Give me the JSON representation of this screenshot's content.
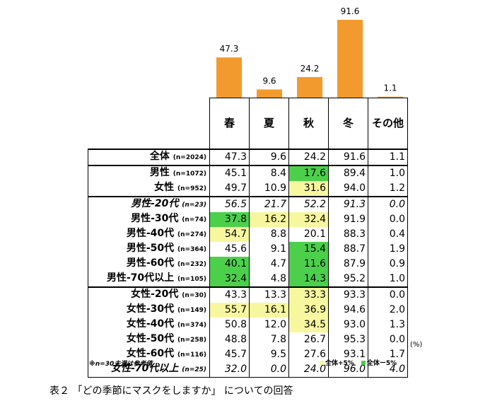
{
  "chart_data": {
    "type": "bar",
    "categories": [
      "春",
      "夏",
      "秋",
      "冬",
      "その他"
    ],
    "values": [
      47.3,
      9.6,
      24.2,
      91.6,
      1.1
    ],
    "ylim": [
      0,
      100
    ],
    "bar_color": "#f39a2e",
    "table": {
      "rows": [
        {
          "label": "全体",
          "n": "(n=2024)",
          "values": [
            "47.3",
            "9.6",
            "24.2",
            "91.6",
            "1.1"
          ],
          "hl": [
            "",
            "",
            "",
            "",
            ""
          ],
          "ref": false,
          "group_start": true
        },
        {
          "label": "男性",
          "n": "(n=1072)",
          "values": [
            "45.1",
            "8.4",
            "17.6",
            "89.4",
            "1.0"
          ],
          "hl": [
            "",
            "",
            "lo",
            "",
            ""
          ],
          "ref": false,
          "group_start": true
        },
        {
          "label": "女性",
          "n": "(n=952)",
          "values": [
            "49.7",
            "10.9",
            "31.6",
            "94.0",
            "1.2"
          ],
          "hl": [
            "",
            "",
            "hi",
            "",
            ""
          ],
          "ref": false,
          "group_start": false
        },
        {
          "label": "男性-20代",
          "n": "(n=23)",
          "values": [
            "56.5",
            "21.7",
            "52.2",
            "91.3",
            "0.0"
          ],
          "hl": [
            "",
            "",
            "",
            "",
            ""
          ],
          "ref": true,
          "group_start": true
        },
        {
          "label": "男性-30代",
          "n": "(n=74)",
          "values": [
            "37.8",
            "16.2",
            "32.4",
            "91.9",
            "0.0"
          ],
          "hl": [
            "lo",
            "hi",
            "hi",
            "",
            ""
          ],
          "ref": false,
          "group_start": false
        },
        {
          "label": "男性-40代",
          "n": "(n=274)",
          "values": [
            "54.7",
            "8.8",
            "20.1",
            "88.3",
            "0.4"
          ],
          "hl": [
            "hi",
            "",
            "",
            "",
            ""
          ],
          "ref": false,
          "group_start": false
        },
        {
          "label": "男性-50代",
          "n": "(n=364)",
          "values": [
            "45.6",
            "9.1",
            "15.4",
            "88.7",
            "1.9"
          ],
          "hl": [
            "",
            "",
            "lo",
            "",
            ""
          ],
          "ref": false,
          "group_start": false
        },
        {
          "label": "男性-60代",
          "n": "(n=232)",
          "values": [
            "40.1",
            "4.7",
            "11.6",
            "87.9",
            "0.9"
          ],
          "hl": [
            "lo",
            "",
            "lo",
            "",
            ""
          ],
          "ref": false,
          "group_start": false
        },
        {
          "label": "男性-70代以上",
          "n": "(n=105)",
          "values": [
            "32.4",
            "4.8",
            "14.3",
            "95.2",
            "1.0"
          ],
          "hl": [
            "lo",
            "",
            "lo",
            "",
            ""
          ],
          "ref": false,
          "group_start": false
        },
        {
          "label": "女性-20代",
          "n": "(n=30)",
          "values": [
            "43.3",
            "13.3",
            "33.3",
            "93.3",
            "0.0"
          ],
          "hl": [
            "",
            "",
            "hi",
            "",
            ""
          ],
          "ref": false,
          "group_start": true
        },
        {
          "label": "女性-30代",
          "n": "(n=149)",
          "values": [
            "55.7",
            "16.1",
            "36.9",
            "94.6",
            "2.0"
          ],
          "hl": [
            "hi",
            "hi",
            "hi",
            "",
            ""
          ],
          "ref": false,
          "group_start": false
        },
        {
          "label": "女性-40代",
          "n": "(n=374)",
          "values": [
            "50.8",
            "12.0",
            "34.5",
            "93.0",
            "1.3"
          ],
          "hl": [
            "",
            "",
            "hi",
            "",
            ""
          ],
          "ref": false,
          "group_start": false
        },
        {
          "label": "女性-50代",
          "n": "(n=258)",
          "values": [
            "48.8",
            "7.8",
            "26.7",
            "95.3",
            "0.0"
          ],
          "hl": [
            "",
            "",
            "",
            "",
            ""
          ],
          "ref": false,
          "group_start": false
        },
        {
          "label": "女性-60代",
          "n": "(n=116)",
          "values": [
            "45.7",
            "9.5",
            "27.6",
            "93.1",
            "1.7"
          ],
          "hl": [
            "",
            "",
            "",
            "",
            ""
          ],
          "ref": false,
          "group_start": false
        },
        {
          "label": "女性-70代以上",
          "n": "(n=25)",
          "values": [
            "32.0",
            "0.0",
            "24.0",
            "96.0",
            "4.0"
          ],
          "hl": [
            "",
            "",
            "",
            "",
            ""
          ],
          "ref": true,
          "group_start": false
        }
      ]
    }
  },
  "unit": "(%)",
  "note": "※n=30未満は参考値",
  "legend": {
    "hi_label": "全体+5%",
    "lo_label": "全体ー5%",
    "hi_color": "#f7f7a0",
    "lo_color": "#4cd04c"
  },
  "caption": "表２ 「どの季節にマスクをしますか」 についての回答"
}
